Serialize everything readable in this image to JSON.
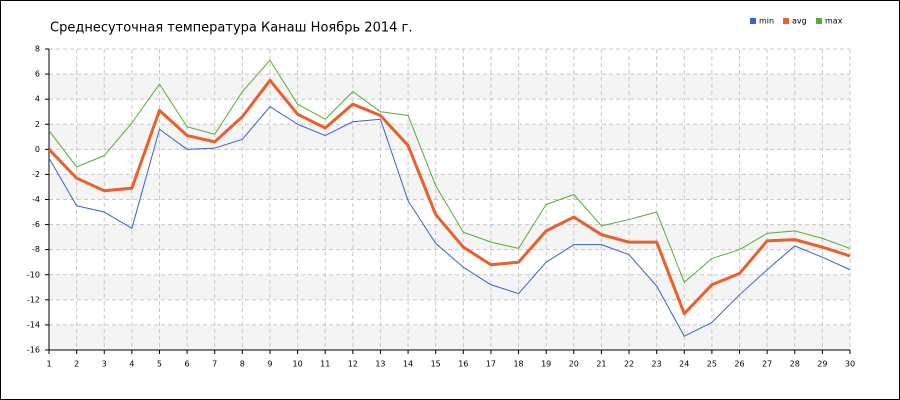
{
  "chart_data": {
    "type": "line",
    "title": "Среднесуточная температура Канаш  Ноябрь 2014 г.",
    "x": [
      1,
      2,
      3,
      4,
      5,
      6,
      7,
      8,
      9,
      10,
      11,
      12,
      13,
      14,
      15,
      16,
      17,
      18,
      19,
      20,
      21,
      22,
      23,
      24,
      25,
      26,
      27,
      28,
      29,
      30
    ],
    "xlim": [
      1,
      30
    ],
    "xticks": [
      1,
      2,
      3,
      4,
      5,
      6,
      7,
      8,
      9,
      10,
      11,
      12,
      13,
      14,
      15,
      16,
      17,
      18,
      19,
      20,
      21,
      22,
      23,
      24,
      25,
      26,
      27,
      28,
      29,
      30
    ],
    "ylim": [
      -16,
      8
    ],
    "yticks": [
      -16,
      -14,
      -12,
      -10,
      -8,
      -6,
      -4,
      -2,
      0,
      2,
      4,
      6,
      8
    ],
    "grid": true,
    "legend": "top-right",
    "series": [
      {
        "name": "min",
        "color": "#3a5fd0",
        "values": [
          -0.7,
          -4.5,
          -5,
          -6.3,
          1.6,
          0,
          0.1,
          0.8,
          3.4,
          2,
          1.1,
          2.2,
          2.4,
          -4.1,
          -7.5,
          -9.4,
          -10.8,
          -11.5,
          -9,
          -7.6,
          -7.6,
          -8.4,
          -10.9,
          -14.9,
          -13.8,
          -11.6,
          -9.6,
          -7.7,
          -8.6,
          -9.6
        ]
      },
      {
        "name": "avg",
        "color": "#e8602c",
        "values": [
          0,
          -2.3,
          -3.3,
          -3.1,
          3.1,
          1.1,
          0.6,
          2.6,
          5.5,
          2.8,
          1.7,
          3.6,
          2.7,
          0.3,
          -5.2,
          -7.8,
          -9.2,
          -9,
          -6.5,
          -5.4,
          -6.8,
          -7.4,
          -7.4,
          -13.1,
          -10.8,
          -9.9,
          -7.3,
          -7.2,
          -7.8,
          -8.5
        ]
      },
      {
        "name": "max",
        "color": "#5aaa3a",
        "values": [
          1.5,
          -1.4,
          -0.5,
          2.1,
          5.2,
          1.8,
          1.2,
          4.6,
          7.1,
          3.6,
          2.4,
          4.6,
          3,
          2.7,
          -2.9,
          -6.6,
          -7.4,
          -7.9,
          -4.4,
          -3.6,
          -6.1,
          -5.6,
          -5,
          -10.6,
          -8.7,
          -8,
          -6.7,
          -6.5,
          -7.1,
          -7.9
        ]
      }
    ]
  }
}
